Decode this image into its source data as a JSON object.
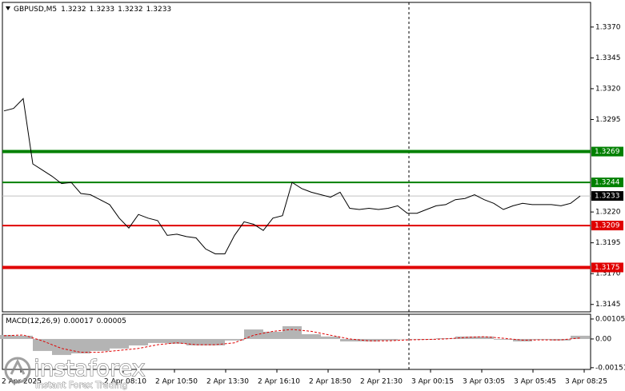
{
  "chart_data": [
    {
      "type": "line",
      "title": "GBPUSD,M5",
      "ohlc": [
        1.3232,
        1.3233,
        1.3232,
        1.3233
      ],
      "color": "#000000",
      "values": [
        1.3302,
        1.3304,
        1.3312,
        1.3259,
        1.3254,
        1.3249,
        1.3243,
        1.3244,
        1.3235,
        1.3234,
        1.323,
        1.3226,
        1.3215,
        1.3207,
        1.3218,
        1.3215,
        1.3213,
        1.3201,
        1.3202,
        1.32,
        1.3199,
        1.319,
        1.3186,
        1.3186,
        1.3201,
        1.3212,
        1.321,
        1.3205,
        1.3215,
        1.3217,
        1.3244,
        1.3239,
        1.3236,
        1.3234,
        1.3232,
        1.3236,
        1.3223,
        1.3222,
        1.3223,
        1.3222,
        1.3223,
        1.3225,
        1.3219,
        1.3219,
        1.3222,
        1.3225,
        1.3226,
        1.323,
        1.3231,
        1.3234,
        1.323,
        1.3227,
        1.3222,
        1.3225,
        1.3227,
        1.3226,
        1.3226,
        1.3226,
        1.3225,
        1.3227,
        1.3233
      ],
      "ylim": [
        1.3139,
        1.339
      ],
      "yticks": [
        {
          "value": 1.337,
          "label": "1.3370"
        },
        1.3345,
        {
          "value": 1.332,
          "label": "1.3320"
        },
        1.3295,
        {
          "value": 1.322,
          "label": "1.3220"
        },
        1.3195,
        {
          "value": 1.317,
          "label": "1.3170"
        },
        1.3145
      ],
      "xtick_labels": [
        "2 Apr 2025",
        null,
        "2 Apr 08:10",
        "2 Apr 10:50",
        "2 Apr 13:30",
        "2 Apr 16:10",
        "2 Apr 18:50",
        "2 Apr 21:30",
        "3 Apr 00:15",
        "3 Apr 03:05",
        "3 Apr 05:45",
        "3 Apr 08:25"
      ],
      "levels": [
        {
          "value": 1.3269,
          "color": "#008000",
          "width": 4
        },
        {
          "value": 1.3244,
          "color": "#008000",
          "width": 2
        },
        {
          "value": 1.3209,
          "color": "#e00000",
          "width": 2
        },
        {
          "value": 1.3175,
          "color": "#e00000",
          "width": 4
        }
      ],
      "last_price": {
        "value": 1.3233,
        "color": "#000000"
      }
    },
    {
      "type": "macd",
      "title": "MACD(12,26,9)",
      "readout": [
        0.00017,
        5e-05
      ],
      "ylim": [
        -0.0016,
        0.0013
      ],
      "yticks": [
        0.00105,
        {
          "value": 0,
          "label": "0.00"
        },
        -0.00151
      ],
      "series": [
        {
          "color": "#b4b4b4",
          "values": [
            0.00021,
            0.00017,
            -0.00063,
            -0.00084,
            -0.00076,
            -0.00063,
            -0.0005,
            -0.00034,
            -0.00021,
            -0.00025,
            -0.00034,
            -0.00034,
            -8e-05,
            0.0005,
            0.00038,
            0.00067,
            0.00025,
            0.00013,
            -0.00013,
            -0.00013,
            -8e-05,
            0,
            -4e-05,
            4e-05,
            0.00013,
            0.00013,
            -4e-05,
            -0.00013,
            -4e-05,
            -8e-05,
            0.00017
          ]
        },
        {
          "color": "#e00000",
          "values": [
            0.00017,
            0.00021,
            -0.0001,
            -0.0005,
            -0.0007,
            -0.0007,
            -0.0006,
            -0.0005,
            -0.0003,
            -0.0002,
            -0.0003,
            -0.0003,
            -0.0002,
            0.0002,
            0.0004,
            0.0005,
            0.0004,
            0.0002,
            0,
            -0.0001,
            -0.0001,
            -5e-05,
            -3e-05,
            0,
            8e-05,
            0.00012,
            4e-05,
            -6e-05,
            -5e-05,
            -5e-05,
            5e-05
          ]
        }
      ]
    }
  ],
  "watermark": {
    "brand": "instaforex",
    "tagline": "Instant Forex Trading"
  }
}
